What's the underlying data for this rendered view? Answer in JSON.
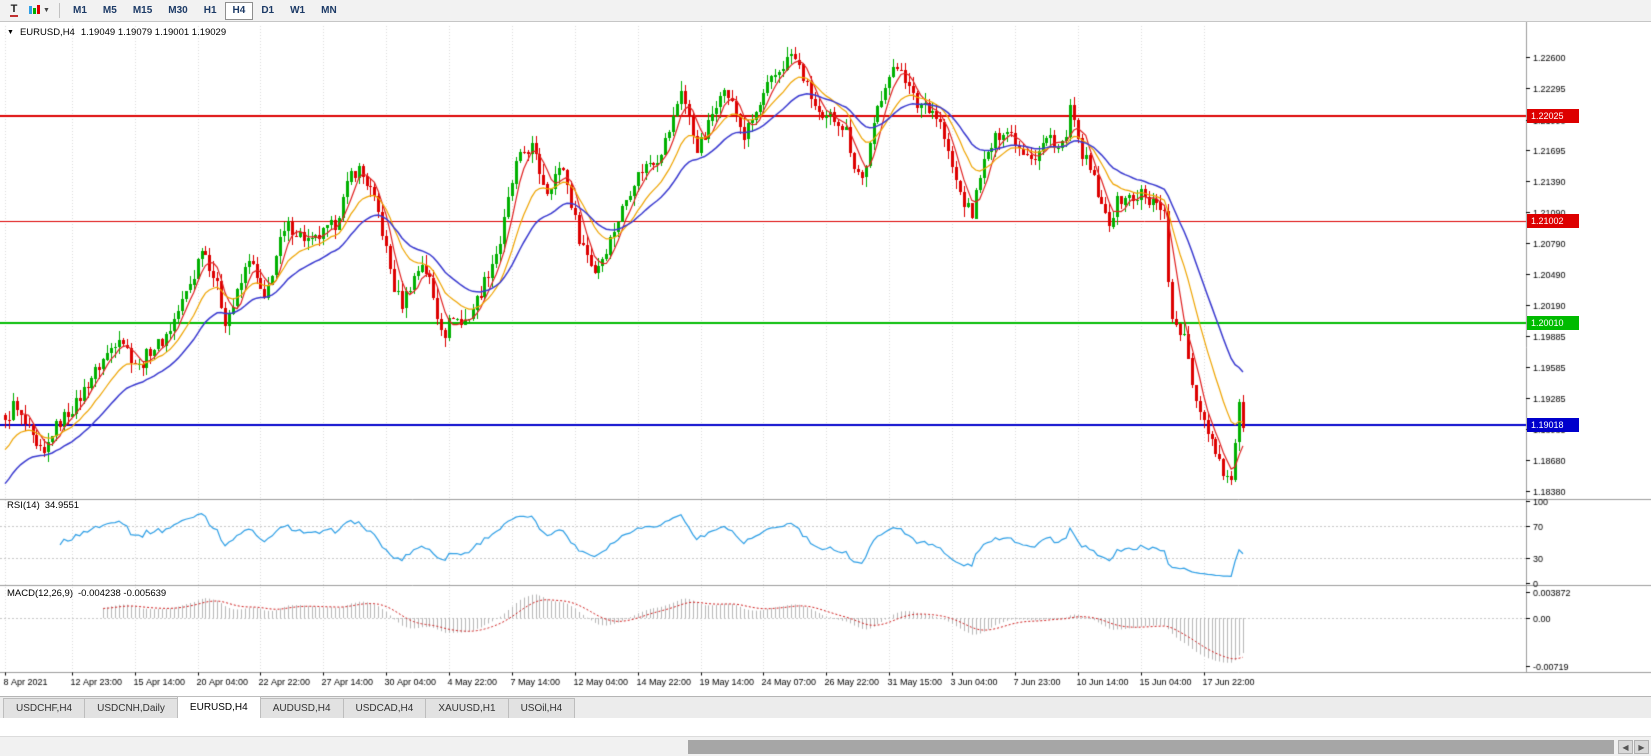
{
  "toolbar": {
    "text_tool_label": "T",
    "timeframes": [
      "M1",
      "M5",
      "M15",
      "M30",
      "H1",
      "H4",
      "D1",
      "W1",
      "MN"
    ],
    "active_timeframe": "H4"
  },
  "chart": {
    "symbol_label": "EURUSD,H4",
    "ohlc": "1.19049 1.19079 1.19001 1.19029",
    "price_ticks": [
      "1.22600",
      "1.22295",
      "1.21990",
      "1.21695",
      "1.21390",
      "1.21090",
      "1.20790",
      "1.20490",
      "1.20190",
      "1.19885",
      "1.19585",
      "1.19285",
      "1.18985",
      "1.18680",
      "1.18380"
    ]
  },
  "indicators": {
    "rsi": {
      "label": "RSI(14)",
      "value": "34.9551",
      "ticks": [
        100,
        70,
        30,
        0
      ],
      "levels": [
        70,
        30
      ],
      "color": "#2e9fe6"
    },
    "macd": {
      "label": "MACD(12,26,9)",
      "values": "-0.004238 -0.005639",
      "ticks": [
        {
          "label": "0.003872",
          "value": 0.003872
        },
        {
          "label": "0.00",
          "value": 0
        },
        {
          "label": "-0.00719",
          "value": -0.00719
        }
      ],
      "histogram_color": "#b8b8b8",
      "signal_color": "#d02020"
    }
  },
  "chart_data": {
    "type": "candlestick",
    "symbol": "EURUSD",
    "timeframe": "H4",
    "bar_count": 316,
    "y_range": [
      1.1832,
      1.229
    ],
    "bull_color": "#00b000",
    "bear_color": "#dd0000",
    "x_labels": [
      "8 Apr 2021",
      "12 Apr 23:00",
      "15 Apr 14:00",
      "20 Apr 04:00",
      "22 Apr 22:00",
      "27 Apr 14:00",
      "30 Apr 04:00",
      "4 May 22:00",
      "7 May 14:00",
      "12 May 04:00",
      "14 May 22:00",
      "19 May 14:00",
      "24 May 07:00",
      "26 May 22:00",
      "31 May 15:00",
      "3 Jun 04:00",
      "7 Jun 23:00",
      "10 Jun 14:00",
      "15 Jun 04:00",
      "17 Jun 22:00"
    ],
    "x_label_bar_index": [
      0,
      17,
      33,
      49,
      65,
      81,
      97,
      113,
      129,
      145,
      161,
      177,
      193,
      209,
      225,
      241,
      257,
      273,
      289,
      305
    ],
    "price_anchors": [
      [
        0,
        1.1903
      ],
      [
        2,
        1.1921
      ],
      [
        4,
        1.1908
      ],
      [
        6,
        1.1896
      ],
      [
        8,
        1.1878
      ],
      [
        10,
        1.1872
      ],
      [
        12,
        1.1895
      ],
      [
        15,
        1.191
      ],
      [
        18,
        1.1922
      ],
      [
        21,
        1.1943
      ],
      [
        24,
        1.196
      ],
      [
        27,
        1.1977
      ],
      [
        29,
        1.199
      ],
      [
        32,
        1.1968
      ],
      [
        34,
        1.1958
      ],
      [
        37,
        1.1975
      ],
      [
        40,
        1.1983
      ],
      [
        42,
        1.1996
      ],
      [
        45,
        1.2022
      ],
      [
        48,
        1.2048
      ],
      [
        50,
        1.2077
      ],
      [
        52,
        1.2058
      ],
      [
        54,
        1.2036
      ],
      [
        56,
        1.2004
      ],
      [
        58,
        1.2018
      ],
      [
        60,
        1.204
      ],
      [
        62,
        1.2066
      ],
      [
        64,
        1.2043
      ],
      [
        66,
        1.2021
      ],
      [
        68,
        1.2052
      ],
      [
        70,
        1.208
      ],
      [
        72,
        1.2095
      ],
      [
        75,
        1.2087
      ],
      [
        78,
        1.2079
      ],
      [
        81,
        1.2088
      ],
      [
        84,
        1.2098
      ],
      [
        86,
        1.212
      ],
      [
        88,
        1.2147
      ],
      [
        90,
        1.2151
      ],
      [
        93,
        1.213
      ],
      [
        95,
        1.2108
      ],
      [
        97,
        1.2072
      ],
      [
        99,
        1.2035
      ],
      [
        101,
        1.202
      ],
      [
        103,
        1.2038
      ],
      [
        106,
        1.206
      ],
      [
        108,
        1.2042
      ],
      [
        110,
        1.2008
      ],
      [
        112,
        1.1992
      ],
      [
        114,
        1.201
      ],
      [
        116,
        1.2
      ],
      [
        118,
        1.2008
      ],
      [
        121,
        1.2032
      ],
      [
        124,
        1.206
      ],
      [
        126,
        1.208
      ],
      [
        128,
        1.212
      ],
      [
        130,
        1.2155
      ],
      [
        132,
        1.2168
      ],
      [
        134,
        1.2172
      ],
      [
        136,
        1.2148
      ],
      [
        138,
        1.213
      ],
      [
        140,
        1.2145
      ],
      [
        142,
        1.2152
      ],
      [
        144,
        1.2118
      ],
      [
        146,
        1.2085
      ],
      [
        148,
        1.2068
      ],
      [
        150,
        1.2052
      ],
      [
        152,
        1.2065
      ],
      [
        154,
        1.2083
      ],
      [
        156,
        1.2102
      ],
      [
        158,
        1.2122
      ],
      [
        160,
        1.214
      ],
      [
        162,
        1.215
      ],
      [
        164,
        1.2158
      ],
      [
        166,
        1.2162
      ],
      [
        168,
        1.2178
      ],
      [
        170,
        1.22
      ],
      [
        172,
        1.223
      ],
      [
        174,
        1.2198
      ],
      [
        176,
        1.2172
      ],
      [
        178,
        1.2182
      ],
      [
        180,
        1.2205
      ],
      [
        182,
        1.2228
      ],
      [
        184,
        1.2222
      ],
      [
        186,
        1.2205
      ],
      [
        188,
        1.2182
      ],
      [
        190,
        1.2198
      ],
      [
        192,
        1.2212
      ],
      [
        194,
        1.223
      ],
      [
        196,
        1.2242
      ],
      [
        198,
        1.2252
      ],
      [
        200,
        1.2262
      ],
      [
        202,
        1.225
      ],
      [
        204,
        1.223
      ],
      [
        206,
        1.2212
      ],
      [
        208,
        1.2195
      ],
      [
        210,
        1.2202
      ],
      [
        212,
        1.2198
      ],
      [
        214,
        1.2188
      ],
      [
        216,
        1.2155
      ],
      [
        218,
        1.2142
      ],
      [
        220,
        1.2172
      ],
      [
        222,
        1.221
      ],
      [
        224,
        1.2235
      ],
      [
        226,
        1.2245
      ],
      [
        228,
        1.2252
      ],
      [
        230,
        1.2228
      ],
      [
        232,
        1.2212
      ],
      [
        234,
        1.2215
      ],
      [
        236,
        1.2208
      ],
      [
        238,
        1.2195
      ],
      [
        240,
        1.2165
      ],
      [
        242,
        1.2138
      ],
      [
        244,
        1.2118
      ],
      [
        246,
        1.2106
      ],
      [
        248,
        1.2148
      ],
      [
        250,
        1.2165
      ],
      [
        252,
        1.218
      ],
      [
        254,
        1.219
      ],
      [
        256,
        1.2185
      ],
      [
        258,
        1.2172
      ],
      [
        260,
        1.2168
      ],
      [
        262,
        1.2162
      ],
      [
        264,
        1.2175
      ],
      [
        266,
        1.2182
      ],
      [
        268,
        1.2172
      ],
      [
        270,
        1.218
      ],
      [
        271,
        1.2212
      ],
      [
        273,
        1.2175
      ],
      [
        275,
        1.2158
      ],
      [
        277,
        1.214
      ],
      [
        279,
        1.2112
      ],
      [
        281,
        1.21
      ],
      [
        283,
        1.2118
      ],
      [
        285,
        1.2125
      ],
      [
        287,
        1.212
      ],
      [
        289,
        1.2128
      ],
      [
        291,
        1.2116
      ],
      [
        293,
        1.2122
      ],
      [
        295,
        1.2108
      ],
      [
        296,
        1.2042
      ],
      [
        297,
        1.201
      ],
      [
        298,
        1.1995
      ],
      [
        300,
        1.1988
      ],
      [
        301,
        1.1962
      ],
      [
        302,
        1.194
      ],
      [
        304,
        1.1918
      ],
      [
        306,
        1.1898
      ],
      [
        308,
        1.1878
      ],
      [
        310,
        1.1858
      ],
      [
        312,
        1.1846
      ],
      [
        313,
        1.1888
      ],
      [
        314,
        1.1918
      ],
      [
        315,
        1.1903
      ]
    ],
    "moving_averages": [
      {
        "type": "sma",
        "period": 5,
        "color": "#e02020",
        "width": 1.2,
        "seed": null
      },
      {
        "type": "ema",
        "period": 13,
        "color": "#efa400",
        "width": 1.2,
        "seed": 1.1878
      },
      {
        "type": "ema",
        "period": 26,
        "color": "#3a3ad0",
        "width": 1.5,
        "seed": 1.1845
      }
    ],
    "hlines": [
      {
        "price": 1.22025,
        "label": "1.22025",
        "color": "#dd0000",
        "width": 2
      },
      {
        "price": 1.21002,
        "label": "1.21002",
        "color": "#dd0000",
        "width": 1
      },
      {
        "price": 1.2001,
        "label": "1.20010",
        "color": "#00bb00",
        "width": 2
      },
      {
        "price": 1.19018,
        "label": "1.19018",
        "color": "#0000cc",
        "width": 2
      }
    ]
  },
  "tabs": {
    "items": [
      "USDCHF,H4",
      "USDCNH,Daily",
      "EURUSD,H4",
      "AUDUSD,H4",
      "USDCAD,H4",
      "XAUUSD,H1",
      "USOil,H4"
    ],
    "active_index": 2
  }
}
